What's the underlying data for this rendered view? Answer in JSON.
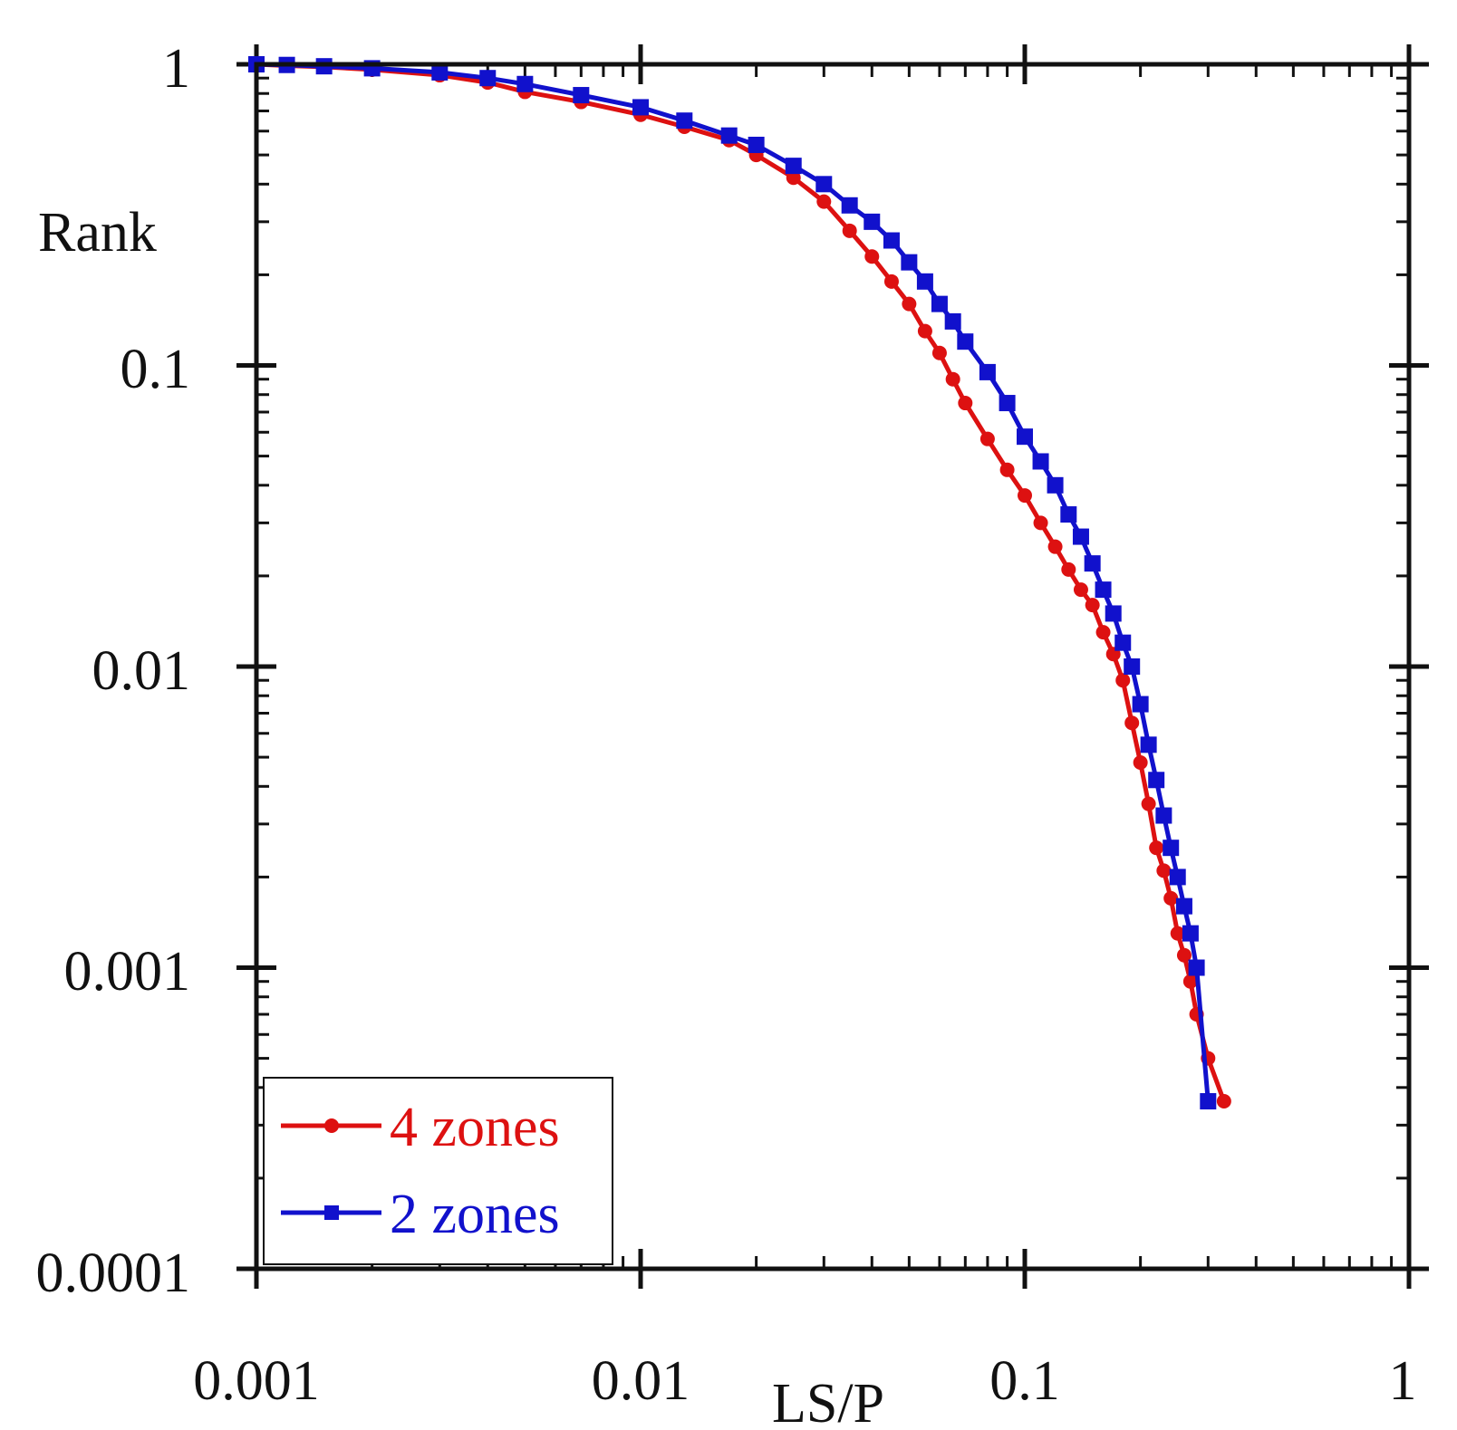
{
  "chart_data": {
    "type": "line",
    "title": "",
    "xlabel": "LS/P",
    "ylabel": "Rank",
    "xscale": "log",
    "yscale": "log",
    "xlim": [
      0.001,
      1
    ],
    "ylim": [
      0.0001,
      1
    ],
    "x_tick_labels": [
      "0.001",
      "0.01",
      "0.1",
      "1"
    ],
    "y_tick_labels": [
      "1",
      "0.1",
      "0.01",
      "0.001",
      "0.0001"
    ],
    "x_ticks": [
      0.001,
      0.01,
      0.1,
      1
    ],
    "y_ticks": [
      1,
      0.1,
      0.01,
      0.001,
      0.0001
    ],
    "grid": false,
    "legend_position": "bottom-left",
    "series": [
      {
        "name": "4 zones",
        "color": "#dd1111",
        "marker": "circle",
        "x": [
          0.001,
          0.0012,
          0.0015,
          0.002,
          0.003,
          0.004,
          0.005,
          0.007,
          0.01,
          0.013,
          0.017,
          0.02,
          0.025,
          0.03,
          0.035,
          0.04,
          0.045,
          0.05,
          0.055,
          0.06,
          0.065,
          0.07,
          0.08,
          0.09,
          0.1,
          0.11,
          0.12,
          0.13,
          0.14,
          0.15,
          0.16,
          0.17,
          0.18,
          0.19,
          0.2,
          0.21,
          0.22,
          0.23,
          0.24,
          0.25,
          0.26,
          0.27,
          0.28,
          0.3,
          0.33
        ],
        "y": [
          1,
          0.99,
          0.98,
          0.96,
          0.92,
          0.87,
          0.81,
          0.75,
          0.68,
          0.62,
          0.56,
          0.5,
          0.42,
          0.35,
          0.28,
          0.23,
          0.19,
          0.16,
          0.13,
          0.11,
          0.09,
          0.075,
          0.057,
          0.045,
          0.037,
          0.03,
          0.025,
          0.021,
          0.018,
          0.016,
          0.013,
          0.011,
          0.009,
          0.0065,
          0.0048,
          0.0035,
          0.0025,
          0.0021,
          0.0017,
          0.0013,
          0.0011,
          0.0009,
          0.0007,
          0.0005,
          0.00036
        ]
      },
      {
        "name": "2 zones",
        "color": "#1111cc",
        "marker": "square",
        "x": [
          0.001,
          0.0012,
          0.0015,
          0.002,
          0.003,
          0.004,
          0.005,
          0.007,
          0.01,
          0.013,
          0.017,
          0.02,
          0.025,
          0.03,
          0.035,
          0.04,
          0.045,
          0.05,
          0.055,
          0.06,
          0.065,
          0.07,
          0.08,
          0.09,
          0.1,
          0.11,
          0.12,
          0.13,
          0.14,
          0.15,
          0.16,
          0.17,
          0.18,
          0.19,
          0.2,
          0.21,
          0.22,
          0.23,
          0.24,
          0.25,
          0.26,
          0.27,
          0.28,
          0.3
        ],
        "y": [
          1,
          0.995,
          0.985,
          0.97,
          0.94,
          0.9,
          0.86,
          0.79,
          0.72,
          0.65,
          0.58,
          0.54,
          0.46,
          0.4,
          0.34,
          0.3,
          0.26,
          0.22,
          0.19,
          0.16,
          0.14,
          0.12,
          0.095,
          0.075,
          0.058,
          0.048,
          0.04,
          0.032,
          0.027,
          0.022,
          0.018,
          0.015,
          0.012,
          0.01,
          0.0075,
          0.0055,
          0.0042,
          0.0032,
          0.0025,
          0.002,
          0.0016,
          0.0013,
          0.001,
          0.00036
        ]
      }
    ]
  }
}
